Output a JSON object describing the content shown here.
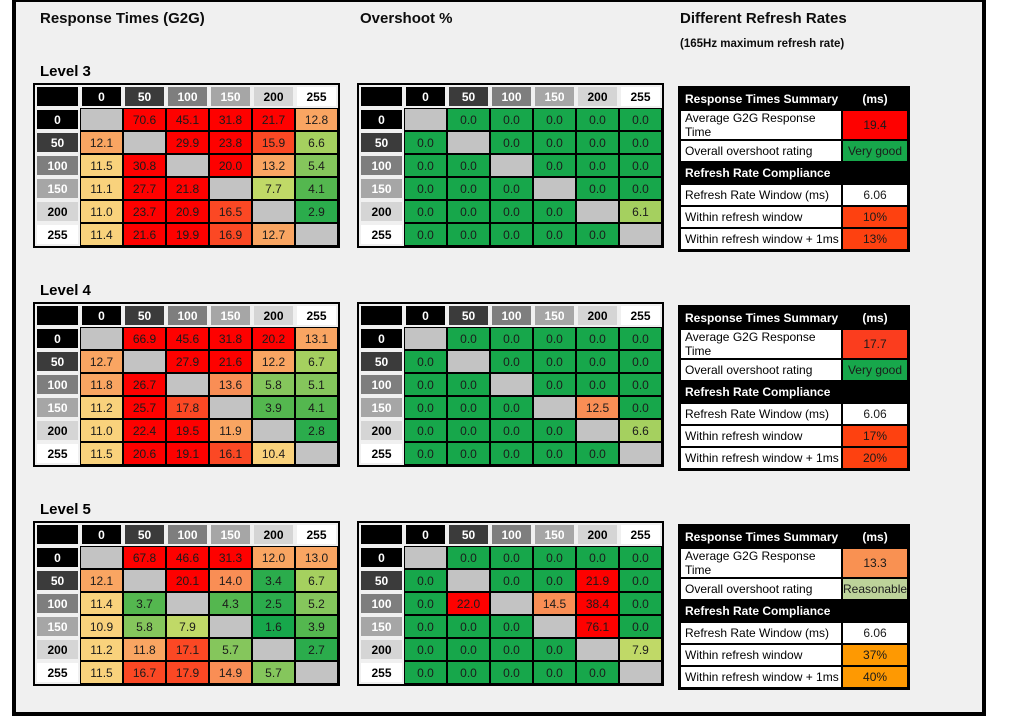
{
  "header": {
    "response_title": "Response Times (G2G)",
    "overshoot_title": "Overshoot %",
    "refresh_title": "Different Refresh Rates",
    "refresh_subtitle": "(165Hz maximum refresh rate)"
  },
  "palette": {
    "red": "#fe0100",
    "ro": "#fb4824",
    "or": "#f98e55",
    "lo": "#f9a562",
    "yl": "#f9d27c",
    "g5": "#c0d967",
    "g4": "#a5d05f",
    "g3": "#85c65c",
    "g2": "#54b74f",
    "g1": "#2bac4c",
    "g0": "#17a74b",
    "na": "#c3c3c3",
    "white": "#ffffff",
    "sumRed": "#fe0100",
    "sumRed2": "#fb3d1e",
    "sumSalmon": "#f99152",
    "sumGreen": "#17a74b",
    "sumPale": "#bdd39a",
    "sumOrangeRed": "#fe4110",
    "sumOrange": "#fe9902"
  },
  "axis": [
    {
      "label": "0",
      "bg": "#000000",
      "fg": "#ffffff"
    },
    {
      "label": "50",
      "bg": "#3b3b3b",
      "fg": "#ffffff"
    },
    {
      "label": "100",
      "bg": "#7e7e7e",
      "fg": "#ffffff"
    },
    {
      "label": "150",
      "bg": "#a6a6a6",
      "fg": "#ffffff"
    },
    {
      "label": "200",
      "bg": "#d5d5d5",
      "fg": "#000000"
    },
    {
      "label": "255",
      "bg": "#ffffff",
      "fg": "#000000"
    }
  ],
  "chart_data": [
    {
      "level": "Level 3",
      "response_g2g": {
        "type": "heatmap",
        "x": [
          "0",
          "50",
          "100",
          "150",
          "200",
          "255"
        ],
        "y": [
          "0",
          "50",
          "100",
          "150",
          "200",
          "255"
        ],
        "values": [
          [
            null,
            70.6,
            45.1,
            31.8,
            21.7,
            12.8
          ],
          [
            12.1,
            null,
            29.9,
            23.8,
            15.9,
            6.6
          ],
          [
            11.5,
            30.8,
            null,
            20.0,
            13.2,
            5.4
          ],
          [
            11.1,
            27.7,
            21.8,
            null,
            7.7,
            4.1
          ],
          [
            11.0,
            23.7,
            20.9,
            16.5,
            null,
            2.9
          ],
          [
            11.4,
            21.6,
            19.9,
            16.9,
            12.7,
            null
          ]
        ],
        "colors": [
          [
            "na",
            "red",
            "red",
            "red",
            "red",
            "lo"
          ],
          [
            "lo",
            "na",
            "red",
            "red",
            "ro",
            "g4"
          ],
          [
            "yl",
            "red",
            "na",
            "red",
            "lo",
            "g3"
          ],
          [
            "yl",
            "red",
            "red",
            "na",
            "g5",
            "g2"
          ],
          [
            "yl",
            "red",
            "red",
            "ro",
            "na",
            "g1"
          ],
          [
            "yl",
            "red",
            "red",
            "ro",
            "lo",
            "na"
          ]
        ]
      },
      "overshoot_pct": {
        "type": "heatmap",
        "x": [
          "0",
          "50",
          "100",
          "150",
          "200",
          "255"
        ],
        "y": [
          "0",
          "50",
          "100",
          "150",
          "200",
          "255"
        ],
        "values": [
          [
            null,
            0,
            0,
            0,
            0,
            0
          ],
          [
            0,
            null,
            0,
            0,
            0,
            0
          ],
          [
            0,
            0,
            null,
            0,
            0,
            0
          ],
          [
            0,
            0,
            0,
            null,
            0,
            0
          ],
          [
            0,
            0,
            0,
            0,
            null,
            6.1
          ],
          [
            0,
            0,
            0,
            0,
            0,
            null
          ]
        ],
        "colors": [
          [
            "na",
            "g0",
            "g0",
            "g0",
            "g0",
            "g0"
          ],
          [
            "g0",
            "na",
            "g0",
            "g0",
            "g0",
            "g0"
          ],
          [
            "g0",
            "g0",
            "na",
            "g0",
            "g0",
            "g0"
          ],
          [
            "g0",
            "g0",
            "g0",
            "na",
            "g0",
            "g0"
          ],
          [
            "g0",
            "g0",
            "g0",
            "g0",
            "na",
            "g4"
          ],
          [
            "g0",
            "g0",
            "g0",
            "g0",
            "g0",
            "na"
          ]
        ]
      },
      "summary": {
        "type": "table",
        "header_label": "Response Times Summary",
        "header_unit": "(ms)",
        "rows": [
          {
            "kind": "data",
            "label": "Average G2G Response Time",
            "value": "19.4",
            "color": "sumRed"
          },
          {
            "kind": "data",
            "label": "Overall overshoot rating",
            "value": "Very good",
            "color": "sumGreen"
          },
          {
            "kind": "section",
            "label": "Refresh Rate Compliance"
          },
          {
            "kind": "data",
            "label": "Refresh Rate Window (ms)",
            "value": "6.06",
            "color": "white"
          },
          {
            "kind": "data",
            "label": "Within refresh window",
            "value": "10%",
            "color": "sumOrangeRed"
          },
          {
            "kind": "data",
            "label": "Within refresh window + 1ms",
            "value": "13%",
            "color": "sumOrangeRed"
          }
        ]
      }
    },
    {
      "level": "Level 4",
      "response_g2g": {
        "type": "heatmap",
        "x": [
          "0",
          "50",
          "100",
          "150",
          "200",
          "255"
        ],
        "y": [
          "0",
          "50",
          "100",
          "150",
          "200",
          "255"
        ],
        "values": [
          [
            null,
            66.9,
            45.6,
            31.8,
            20.2,
            13.1
          ],
          [
            12.7,
            null,
            27.9,
            21.6,
            12.2,
            6.7
          ],
          [
            11.8,
            26.7,
            null,
            13.6,
            5.8,
            5.1
          ],
          [
            11.2,
            25.7,
            17.8,
            null,
            3.9,
            4.1
          ],
          [
            11.0,
            22.4,
            19.5,
            11.9,
            null,
            2.8
          ],
          [
            11.5,
            20.6,
            19.1,
            16.1,
            10.4,
            null
          ]
        ],
        "colors": [
          [
            "na",
            "red",
            "red",
            "red",
            "red",
            "lo"
          ],
          [
            "lo",
            "na",
            "red",
            "red",
            "lo",
            "g4"
          ],
          [
            "lo",
            "red",
            "na",
            "or",
            "g3",
            "g3"
          ],
          [
            "yl",
            "red",
            "ro",
            "na",
            "g2",
            "g2"
          ],
          [
            "yl",
            "red",
            "red",
            "lo",
            "na",
            "g1"
          ],
          [
            "yl",
            "red",
            "red",
            "ro",
            "yl",
            "na"
          ]
        ]
      },
      "overshoot_pct": {
        "type": "heatmap",
        "x": [
          "0",
          "50",
          "100",
          "150",
          "200",
          "255"
        ],
        "y": [
          "0",
          "50",
          "100",
          "150",
          "200",
          "255"
        ],
        "values": [
          [
            null,
            0,
            0,
            0,
            0,
            0
          ],
          [
            0,
            null,
            0,
            0,
            0,
            0
          ],
          [
            0,
            0,
            null,
            0,
            0,
            0
          ],
          [
            0,
            0,
            0,
            null,
            12.5,
            0
          ],
          [
            0,
            0,
            0,
            0,
            null,
            6.6
          ],
          [
            0,
            0,
            0,
            0,
            0,
            null
          ]
        ],
        "colors": [
          [
            "na",
            "g0",
            "g0",
            "g0",
            "g0",
            "g0"
          ],
          [
            "g0",
            "na",
            "g0",
            "g0",
            "g0",
            "g0"
          ],
          [
            "g0",
            "g0",
            "na",
            "g0",
            "g0",
            "g0"
          ],
          [
            "g0",
            "g0",
            "g0",
            "na",
            "or",
            "g0"
          ],
          [
            "g0",
            "g0",
            "g0",
            "g0",
            "na",
            "g4"
          ],
          [
            "g0",
            "g0",
            "g0",
            "g0",
            "g0",
            "na"
          ]
        ]
      },
      "summary": {
        "type": "table",
        "header_label": "Response Times Summary",
        "header_unit": "(ms)",
        "rows": [
          {
            "kind": "data",
            "label": "Average G2G Response Time",
            "value": "17.7",
            "color": "sumRed2"
          },
          {
            "kind": "data",
            "label": "Overall overshoot rating",
            "value": "Very good",
            "color": "sumGreen"
          },
          {
            "kind": "section",
            "label": "Refresh Rate Compliance"
          },
          {
            "kind": "data",
            "label": "Refresh Rate Window (ms)",
            "value": "6.06",
            "color": "white"
          },
          {
            "kind": "data",
            "label": "Within refresh window",
            "value": "17%",
            "color": "sumOrangeRed"
          },
          {
            "kind": "data",
            "label": "Within refresh window + 1ms",
            "value": "20%",
            "color": "sumOrangeRed"
          }
        ]
      }
    },
    {
      "level": "Level 5",
      "response_g2g": {
        "type": "heatmap",
        "x": [
          "0",
          "50",
          "100",
          "150",
          "200",
          "255"
        ],
        "y": [
          "0",
          "50",
          "100",
          "150",
          "200",
          "255"
        ],
        "values": [
          [
            null,
            67.8,
            46.6,
            31.3,
            12.0,
            13.0
          ],
          [
            12.1,
            null,
            20.1,
            14.0,
            3.4,
            6.7
          ],
          [
            11.4,
            3.7,
            null,
            4.3,
            2.5,
            5.2
          ],
          [
            10.9,
            5.8,
            7.9,
            null,
            1.6,
            3.9
          ],
          [
            11.2,
            11.8,
            17.1,
            5.7,
            null,
            2.7
          ],
          [
            11.5,
            16.7,
            17.9,
            14.9,
            5.7,
            null
          ]
        ],
        "colors": [
          [
            "na",
            "red",
            "red",
            "red",
            "lo",
            "lo"
          ],
          [
            "lo",
            "na",
            "red",
            "or",
            "g1",
            "g4"
          ],
          [
            "yl",
            "g2",
            "na",
            "g2",
            "g1",
            "g3"
          ],
          [
            "yl",
            "g3",
            "g5",
            "na",
            "g0",
            "g2"
          ],
          [
            "yl",
            "lo",
            "ro",
            "g3",
            "na",
            "g1"
          ],
          [
            "yl",
            "ro",
            "ro",
            "or",
            "g3",
            "na"
          ]
        ]
      },
      "overshoot_pct": {
        "type": "heatmap",
        "x": [
          "0",
          "50",
          "100",
          "150",
          "200",
          "255"
        ],
        "y": [
          "0",
          "50",
          "100",
          "150",
          "200",
          "255"
        ],
        "values": [
          [
            null,
            0,
            0,
            0,
            0,
            0
          ],
          [
            0,
            null,
            0,
            0,
            21.9,
            0
          ],
          [
            0,
            22.0,
            null,
            14.5,
            38.4,
            0
          ],
          [
            0,
            0,
            0,
            null,
            76.1,
            0
          ],
          [
            0,
            0,
            0,
            0,
            null,
            7.9
          ],
          [
            0,
            0,
            0,
            0,
            0,
            null
          ]
        ],
        "colors": [
          [
            "na",
            "g0",
            "g0",
            "g0",
            "g0",
            "g0"
          ],
          [
            "g0",
            "na",
            "g0",
            "g0",
            "red",
            "g0"
          ],
          [
            "g0",
            "red",
            "na",
            "or",
            "red",
            "g0"
          ],
          [
            "g0",
            "g0",
            "g0",
            "na",
            "red",
            "g0"
          ],
          [
            "g0",
            "g0",
            "g0",
            "g0",
            "na",
            "g5"
          ],
          [
            "g0",
            "g0",
            "g0",
            "g0",
            "g0",
            "na"
          ]
        ]
      },
      "summary": {
        "type": "table",
        "header_label": "Response Times Summary",
        "header_unit": "(ms)",
        "rows": [
          {
            "kind": "data",
            "label": "Average G2G Response Time",
            "value": "13.3",
            "color": "sumSalmon"
          },
          {
            "kind": "data",
            "label": "Overall overshoot rating",
            "value": "Reasonable",
            "color": "sumPale"
          },
          {
            "kind": "section",
            "label": "Refresh Rate Compliance"
          },
          {
            "kind": "data",
            "label": "Refresh Rate Window (ms)",
            "value": "6.06",
            "color": "white"
          },
          {
            "kind": "data",
            "label": "Within refresh window",
            "value": "37%",
            "color": "sumOrange"
          },
          {
            "kind": "data",
            "label": "Within refresh window + 1ms",
            "value": "40%",
            "color": "sumOrange"
          }
        ]
      }
    }
  ]
}
